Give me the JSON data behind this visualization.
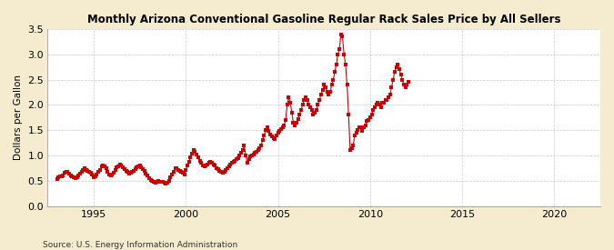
{
  "title": "Monthly Arizona Conventional Gasoline Regular Rack Sales Price by All Sellers",
  "ylabel": "Dollars per Gallon",
  "source": "Source: U.S. Energy Information Administration",
  "bg_color": "#f5eccf",
  "plot_bg_color": "#ffffff",
  "marker_color": "#cc0000",
  "line_color": "#cc0000",
  "marker_size": 2.5,
  "xlim": [
    1992.5,
    2022.5
  ],
  "ylim": [
    0.0,
    3.5
  ],
  "yticks": [
    0.0,
    0.5,
    1.0,
    1.5,
    2.0,
    2.5,
    3.0,
    3.5
  ],
  "xticks": [
    1995,
    2000,
    2005,
    2010,
    2015,
    2020
  ],
  "data": {
    "dates": [
      1993.0,
      1993.083,
      1993.167,
      1993.25,
      1993.333,
      1993.417,
      1993.5,
      1993.583,
      1993.667,
      1993.75,
      1993.833,
      1993.917,
      1994.0,
      1994.083,
      1994.167,
      1994.25,
      1994.333,
      1994.417,
      1994.5,
      1994.583,
      1994.667,
      1994.75,
      1994.833,
      1994.917,
      1995.0,
      1995.083,
      1995.167,
      1995.25,
      1995.333,
      1995.417,
      1995.5,
      1995.583,
      1995.667,
      1995.75,
      1995.833,
      1995.917,
      1996.0,
      1996.083,
      1996.167,
      1996.25,
      1996.333,
      1996.417,
      1996.5,
      1996.583,
      1996.667,
      1996.75,
      1996.833,
      1996.917,
      1997.0,
      1997.083,
      1997.167,
      1997.25,
      1997.333,
      1997.417,
      1997.5,
      1997.583,
      1997.667,
      1997.75,
      1997.833,
      1997.917,
      1998.0,
      1998.083,
      1998.167,
      1998.25,
      1998.333,
      1998.417,
      1998.5,
      1998.583,
      1998.667,
      1998.75,
      1998.833,
      1998.917,
      1999.0,
      1999.083,
      1999.167,
      1999.25,
      1999.333,
      1999.417,
      1999.5,
      1999.583,
      1999.667,
      1999.75,
      1999.833,
      1999.917,
      2000.0,
      2000.083,
      2000.167,
      2000.25,
      2000.333,
      2000.417,
      2000.5,
      2000.583,
      2000.667,
      2000.75,
      2000.833,
      2000.917,
      2001.0,
      2001.083,
      2001.167,
      2001.25,
      2001.333,
      2001.417,
      2001.5,
      2001.583,
      2001.667,
      2001.75,
      2001.833,
      2001.917,
      2002.0,
      2002.083,
      2002.167,
      2002.25,
      2002.333,
      2002.417,
      2002.5,
      2002.583,
      2002.667,
      2002.75,
      2002.833,
      2002.917,
      2003.0,
      2003.083,
      2003.167,
      2003.25,
      2003.333,
      2003.417,
      2003.5,
      2003.583,
      2003.667,
      2003.75,
      2003.833,
      2003.917,
      2004.0,
      2004.083,
      2004.167,
      2004.25,
      2004.333,
      2004.417,
      2004.5,
      2004.583,
      2004.667,
      2004.75,
      2004.833,
      2004.917,
      2005.0,
      2005.083,
      2005.167,
      2005.25,
      2005.333,
      2005.417,
      2005.5,
      2005.583,
      2005.667,
      2005.75,
      2005.833,
      2005.917,
      2006.0,
      2006.083,
      2006.167,
      2006.25,
      2006.333,
      2006.417,
      2006.5,
      2006.583,
      2006.667,
      2006.75,
      2006.833,
      2006.917,
      2007.0,
      2007.083,
      2007.167,
      2007.25,
      2007.333,
      2007.417,
      2007.5,
      2007.583,
      2007.667,
      2007.75,
      2007.833,
      2007.917,
      2008.0,
      2008.083,
      2008.167,
      2008.25,
      2008.333,
      2008.417,
      2008.5,
      2008.583,
      2008.667,
      2008.75,
      2008.833,
      2008.917,
      2009.0,
      2009.083,
      2009.167,
      2009.25,
      2009.333,
      2009.417,
      2009.5,
      2009.583,
      2009.667,
      2009.75,
      2009.833,
      2009.917,
      2010.0,
      2010.083,
      2010.167,
      2010.25,
      2010.333,
      2010.417,
      2010.5,
      2010.583,
      2010.667,
      2010.75,
      2010.833,
      2010.917,
      2011.0,
      2011.083,
      2011.167,
      2011.25,
      2011.333,
      2011.417,
      2011.5,
      2011.583,
      2011.667,
      2011.75,
      2011.833,
      2011.917,
      2012.0,
      2012.083
    ],
    "values": [
      0.54,
      0.57,
      0.58,
      0.59,
      0.6,
      0.65,
      0.68,
      0.67,
      0.64,
      0.6,
      0.58,
      0.56,
      0.55,
      0.57,
      0.6,
      0.64,
      0.68,
      0.72,
      0.74,
      0.72,
      0.7,
      0.67,
      0.65,
      0.62,
      0.56,
      0.58,
      0.63,
      0.67,
      0.72,
      0.78,
      0.8,
      0.78,
      0.74,
      0.68,
      0.63,
      0.6,
      0.62,
      0.66,
      0.71,
      0.76,
      0.78,
      0.82,
      0.81,
      0.77,
      0.73,
      0.7,
      0.67,
      0.64,
      0.65,
      0.68,
      0.7,
      0.73,
      0.76,
      0.79,
      0.8,
      0.77,
      0.73,
      0.69,
      0.64,
      0.6,
      0.55,
      0.52,
      0.5,
      0.48,
      0.46,
      0.47,
      0.49,
      0.48,
      0.47,
      0.47,
      0.46,
      0.45,
      0.46,
      0.5,
      0.56,
      0.62,
      0.68,
      0.74,
      0.75,
      0.72,
      0.7,
      0.68,
      0.66,
      0.63,
      0.72,
      0.8,
      0.88,
      0.96,
      1.04,
      1.1,
      1.08,
      1.02,
      0.96,
      0.9,
      0.85,
      0.8,
      0.78,
      0.8,
      0.82,
      0.85,
      0.88,
      0.85,
      0.82,
      0.8,
      0.75,
      0.73,
      0.7,
      0.68,
      0.65,
      0.68,
      0.72,
      0.75,
      0.78,
      0.82,
      0.85,
      0.88,
      0.9,
      0.92,
      0.95,
      1.0,
      1.05,
      1.1,
      1.2,
      1.0,
      0.85,
      0.92,
      0.98,
      1.0,
      1.02,
      1.05,
      1.08,
      1.1,
      1.15,
      1.2,
      1.3,
      1.4,
      1.5,
      1.55,
      1.48,
      1.42,
      1.38,
      1.35,
      1.33,
      1.4,
      1.45,
      1.48,
      1.52,
      1.55,
      1.6,
      1.7,
      2.0,
      2.15,
      2.05,
      1.85,
      1.65,
      1.6,
      1.65,
      1.72,
      1.8,
      1.9,
      2.0,
      2.1,
      2.15,
      2.1,
      2.0,
      1.95,
      1.9,
      1.8,
      1.85,
      1.9,
      2.0,
      2.1,
      2.2,
      2.3,
      2.4,
      2.35,
      2.25,
      2.2,
      2.25,
      2.4,
      2.5,
      2.65,
      2.8,
      3.0,
      3.1,
      3.4,
      3.35,
      3.0,
      2.8,
      2.4,
      1.8,
      1.1,
      1.15,
      1.2,
      1.4,
      1.45,
      1.5,
      1.55,
      1.55,
      1.48,
      1.55,
      1.6,
      1.68,
      1.7,
      1.75,
      1.8,
      1.9,
      1.95,
      2.0,
      2.05,
      2.0,
      1.95,
      2.05,
      2.05,
      2.1,
      2.1,
      2.15,
      2.2,
      2.35,
      2.5,
      2.65,
      2.75,
      2.8,
      2.7,
      2.6,
      2.5,
      2.4,
      2.35,
      2.4,
      2.45
    ]
  }
}
